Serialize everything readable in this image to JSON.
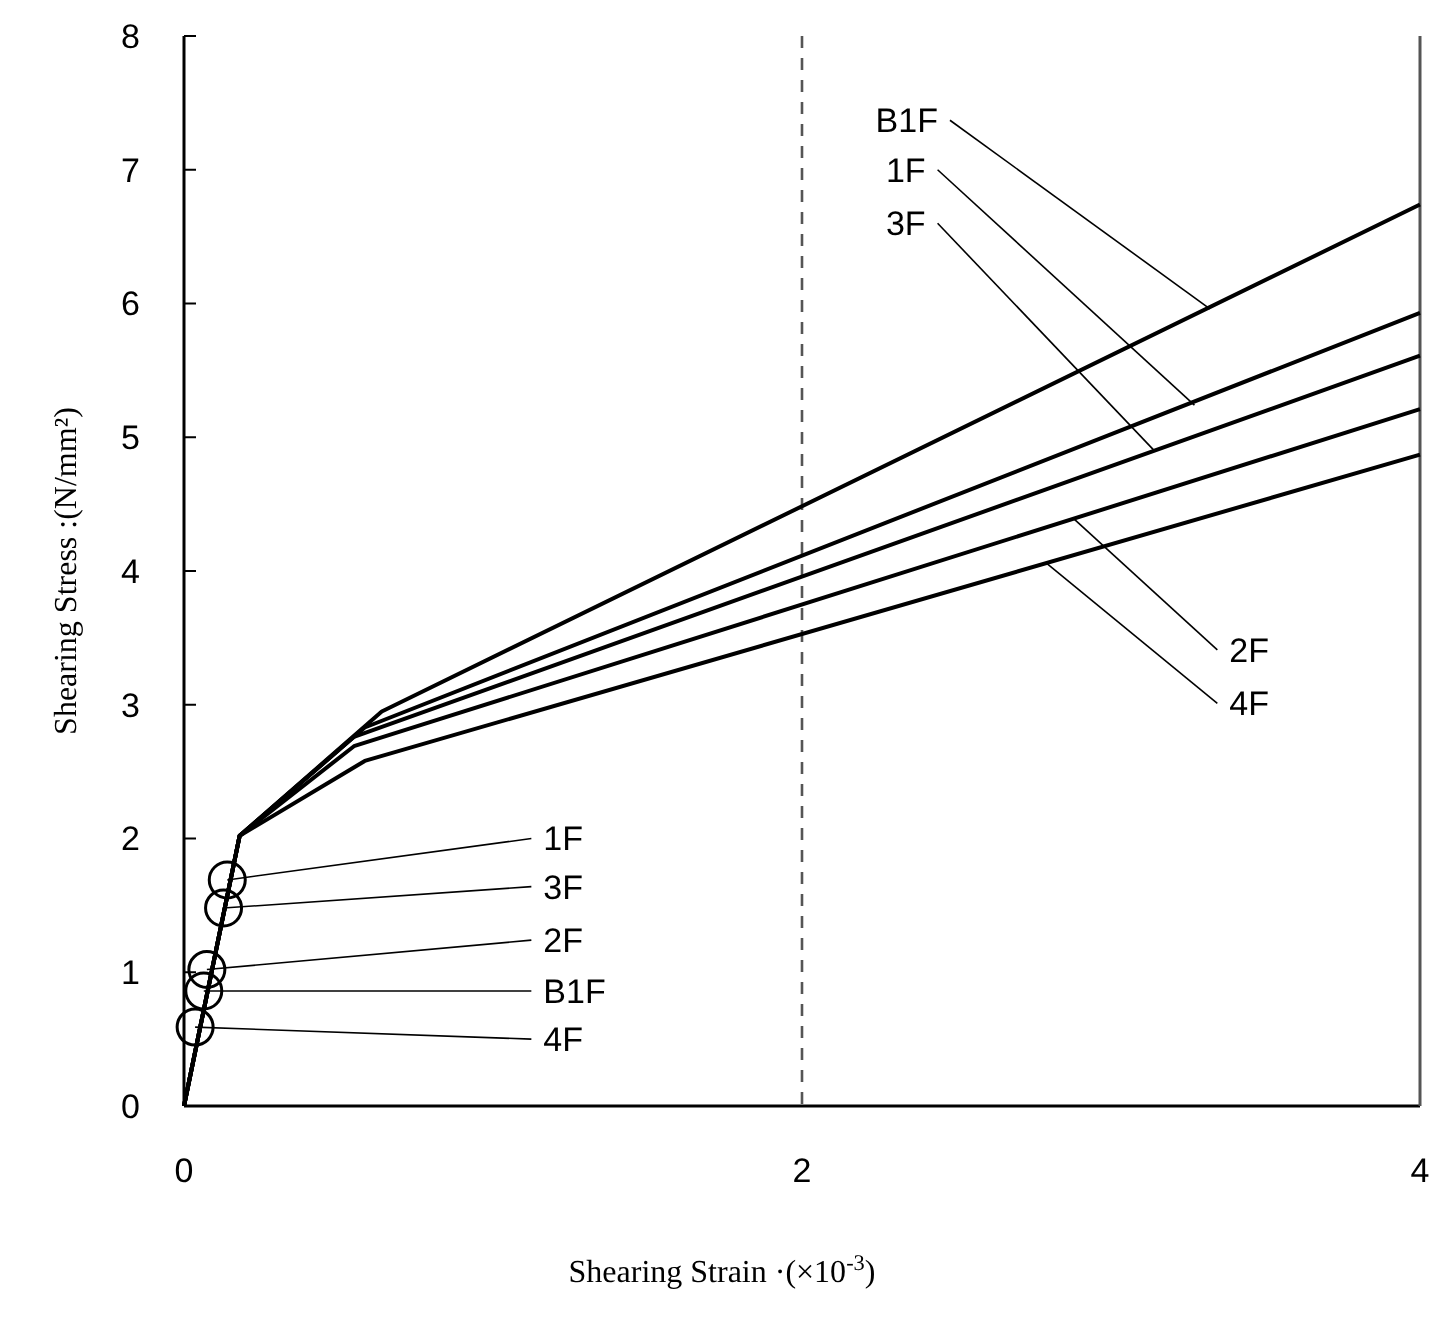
{
  "chart_data": {
    "type": "line",
    "xlabel": "Shearing Strain ·(×10$^{-3}$)",
    "ylabel": "Shearing Stress :(N/mm²)",
    "xlim": [
      0,
      4
    ],
    "xticks": [
      0,
      2,
      4
    ],
    "ylim": [
      0,
      8
    ],
    "yticks": [
      0,
      1,
      2,
      3,
      4,
      5,
      6,
      7,
      8
    ],
    "line_style": "solid",
    "series": [
      {
        "color": "#000000",
        "x": [
          0,
          0.18,
          0.64,
          4
        ],
        "values": [
          0,
          2.02,
          2.95,
          6.74
        ]
      },
      {
        "color": "#000000",
        "x": [
          0,
          0.18,
          0.585,
          4
        ],
        "values": [
          0,
          2.02,
          2.83,
          5.93
        ]
      },
      {
        "color": "#000000",
        "x": [
          0,
          0.18,
          0.55,
          4
        ],
        "values": [
          0,
          2.02,
          2.76,
          5.61
        ]
      },
      {
        "color": "#000000",
        "x": [
          0,
          0.18,
          0.55,
          4
        ],
        "values": [
          0,
          2.02,
          2.69,
          5.21
        ]
      },
      {
        "color": "#000000",
        "x": [
          0,
          0.18,
          0.585,
          4
        ],
        "values": [
          0,
          2.02,
          2.58,
          4.87
        ]
      },
      {
        "type": "scatter",
        "marker": "circle",
        "color": "#000000",
        "x": [
          0.14,
          0.128,
          0.074,
          0.064,
          0.036
        ],
        "values": [
          1.69,
          1.48,
          1.02,
          0.86,
          0.59
        ]
      }
    ],
    "ref_lines": [
      {
        "axis": "x",
        "value": 2,
        "line_style": "dashed",
        "color": "#555555"
      }
    ],
    "annotations": [
      {
        "text": "B1F",
        "x": 3.32,
        "y": 5.96
      },
      {
        "text": "1F",
        "x": 3.27,
        "y": 5.24
      },
      {
        "text": "3F",
        "x": 3.14,
        "y": 4.9
      },
      {
        "text": "2F",
        "x": 2.88,
        "y": 4.39
      },
      {
        "text": "4F",
        "x": 2.79,
        "y": 4.06
      },
      {
        "text": "1F",
        "x": 0.14,
        "y": 1.69
      },
      {
        "text": "3F",
        "x": 0.128,
        "y": 1.48
      },
      {
        "text": "2F",
        "x": 0.074,
        "y": 1.02
      },
      {
        "text": "B1F",
        "x": 0.064,
        "y": 0.86
      },
      {
        "text": "4F",
        "x": 0.036,
        "y": 0.59
      }
    ]
  }
}
